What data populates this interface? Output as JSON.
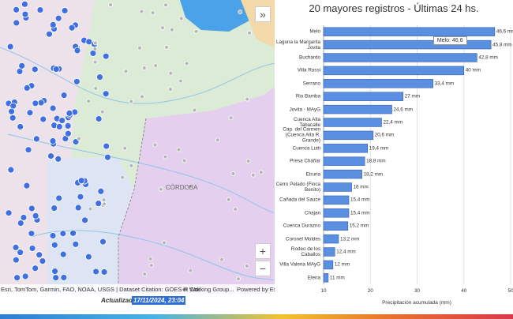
{
  "map": {
    "region_label": "CÓRDOBA",
    "attribution": "Esri, TomTom, Garmin, FAO, NOAA, USGS | Dataset Citation: GOES-R Cali",
    "attribution_tail": "in Working Group...",
    "powered_by": "Powered by Esri",
    "zoom_in": "+",
    "zoom_out": "−",
    "collapse": "»"
  },
  "updated_label": "Actualizado:",
  "updated_value": "17/11/2024, 23:04",
  "tooltip": "Melo: 46,6",
  "chart_data": {
    "type": "bar",
    "orientation": "horizontal",
    "title": "20 mayores registros - Últimas 24 hs.",
    "x_label": "Precipitación acumulada (mm)",
    "color": "#5b8fe0",
    "categories": [
      "Melo",
      "Laguna la Margarita Jovita",
      "Buchardo",
      "Villa Rossi",
      "Serrano",
      "Rio Bamba",
      "Jovita - MAyG",
      "Cuenca Alta Tabacalle",
      "Cap. del Carmen (Cuenca Alta R. Grande)",
      "Cuenca Lutti",
      "Presa Chañar",
      "Etruria",
      "Cerro Pelado (Finca Benito)",
      "Cañada del Sauce",
      "Chajan",
      "Cuenca Durazno",
      "Coronel Moldes",
      "Rodeo de los Caballos",
      "Villa Valeria MAyG",
      "Elena"
    ],
    "values": [
      46.6,
      45.8,
      42.8,
      40,
      33.4,
      27,
      24.6,
      22.4,
      20.6,
      19.4,
      18.8,
      18.2,
      16,
      15.4,
      15.4,
      15.2,
      13.2,
      12.4,
      12,
      11
    ],
    "value_labels": [
      "46,6 mm",
      "45,8 mm",
      "42,8 mm",
      "40 mm",
      "33,4 mm",
      "27 mm",
      "24,6 mm",
      "22,4 mm",
      "20,6 mm",
      "19,4 mm",
      "18,8 mm",
      "18,2 mm",
      "16 mm",
      "15,4 mm",
      "15,4 mm",
      "15,2 mm",
      "13,2 mm",
      "12,4 mm",
      "12 mm",
      "11 mm"
    ],
    "xlim": [
      10,
      50
    ],
    "xticks": [
      10,
      20,
      30,
      40,
      50
    ],
    "grid": true
  }
}
